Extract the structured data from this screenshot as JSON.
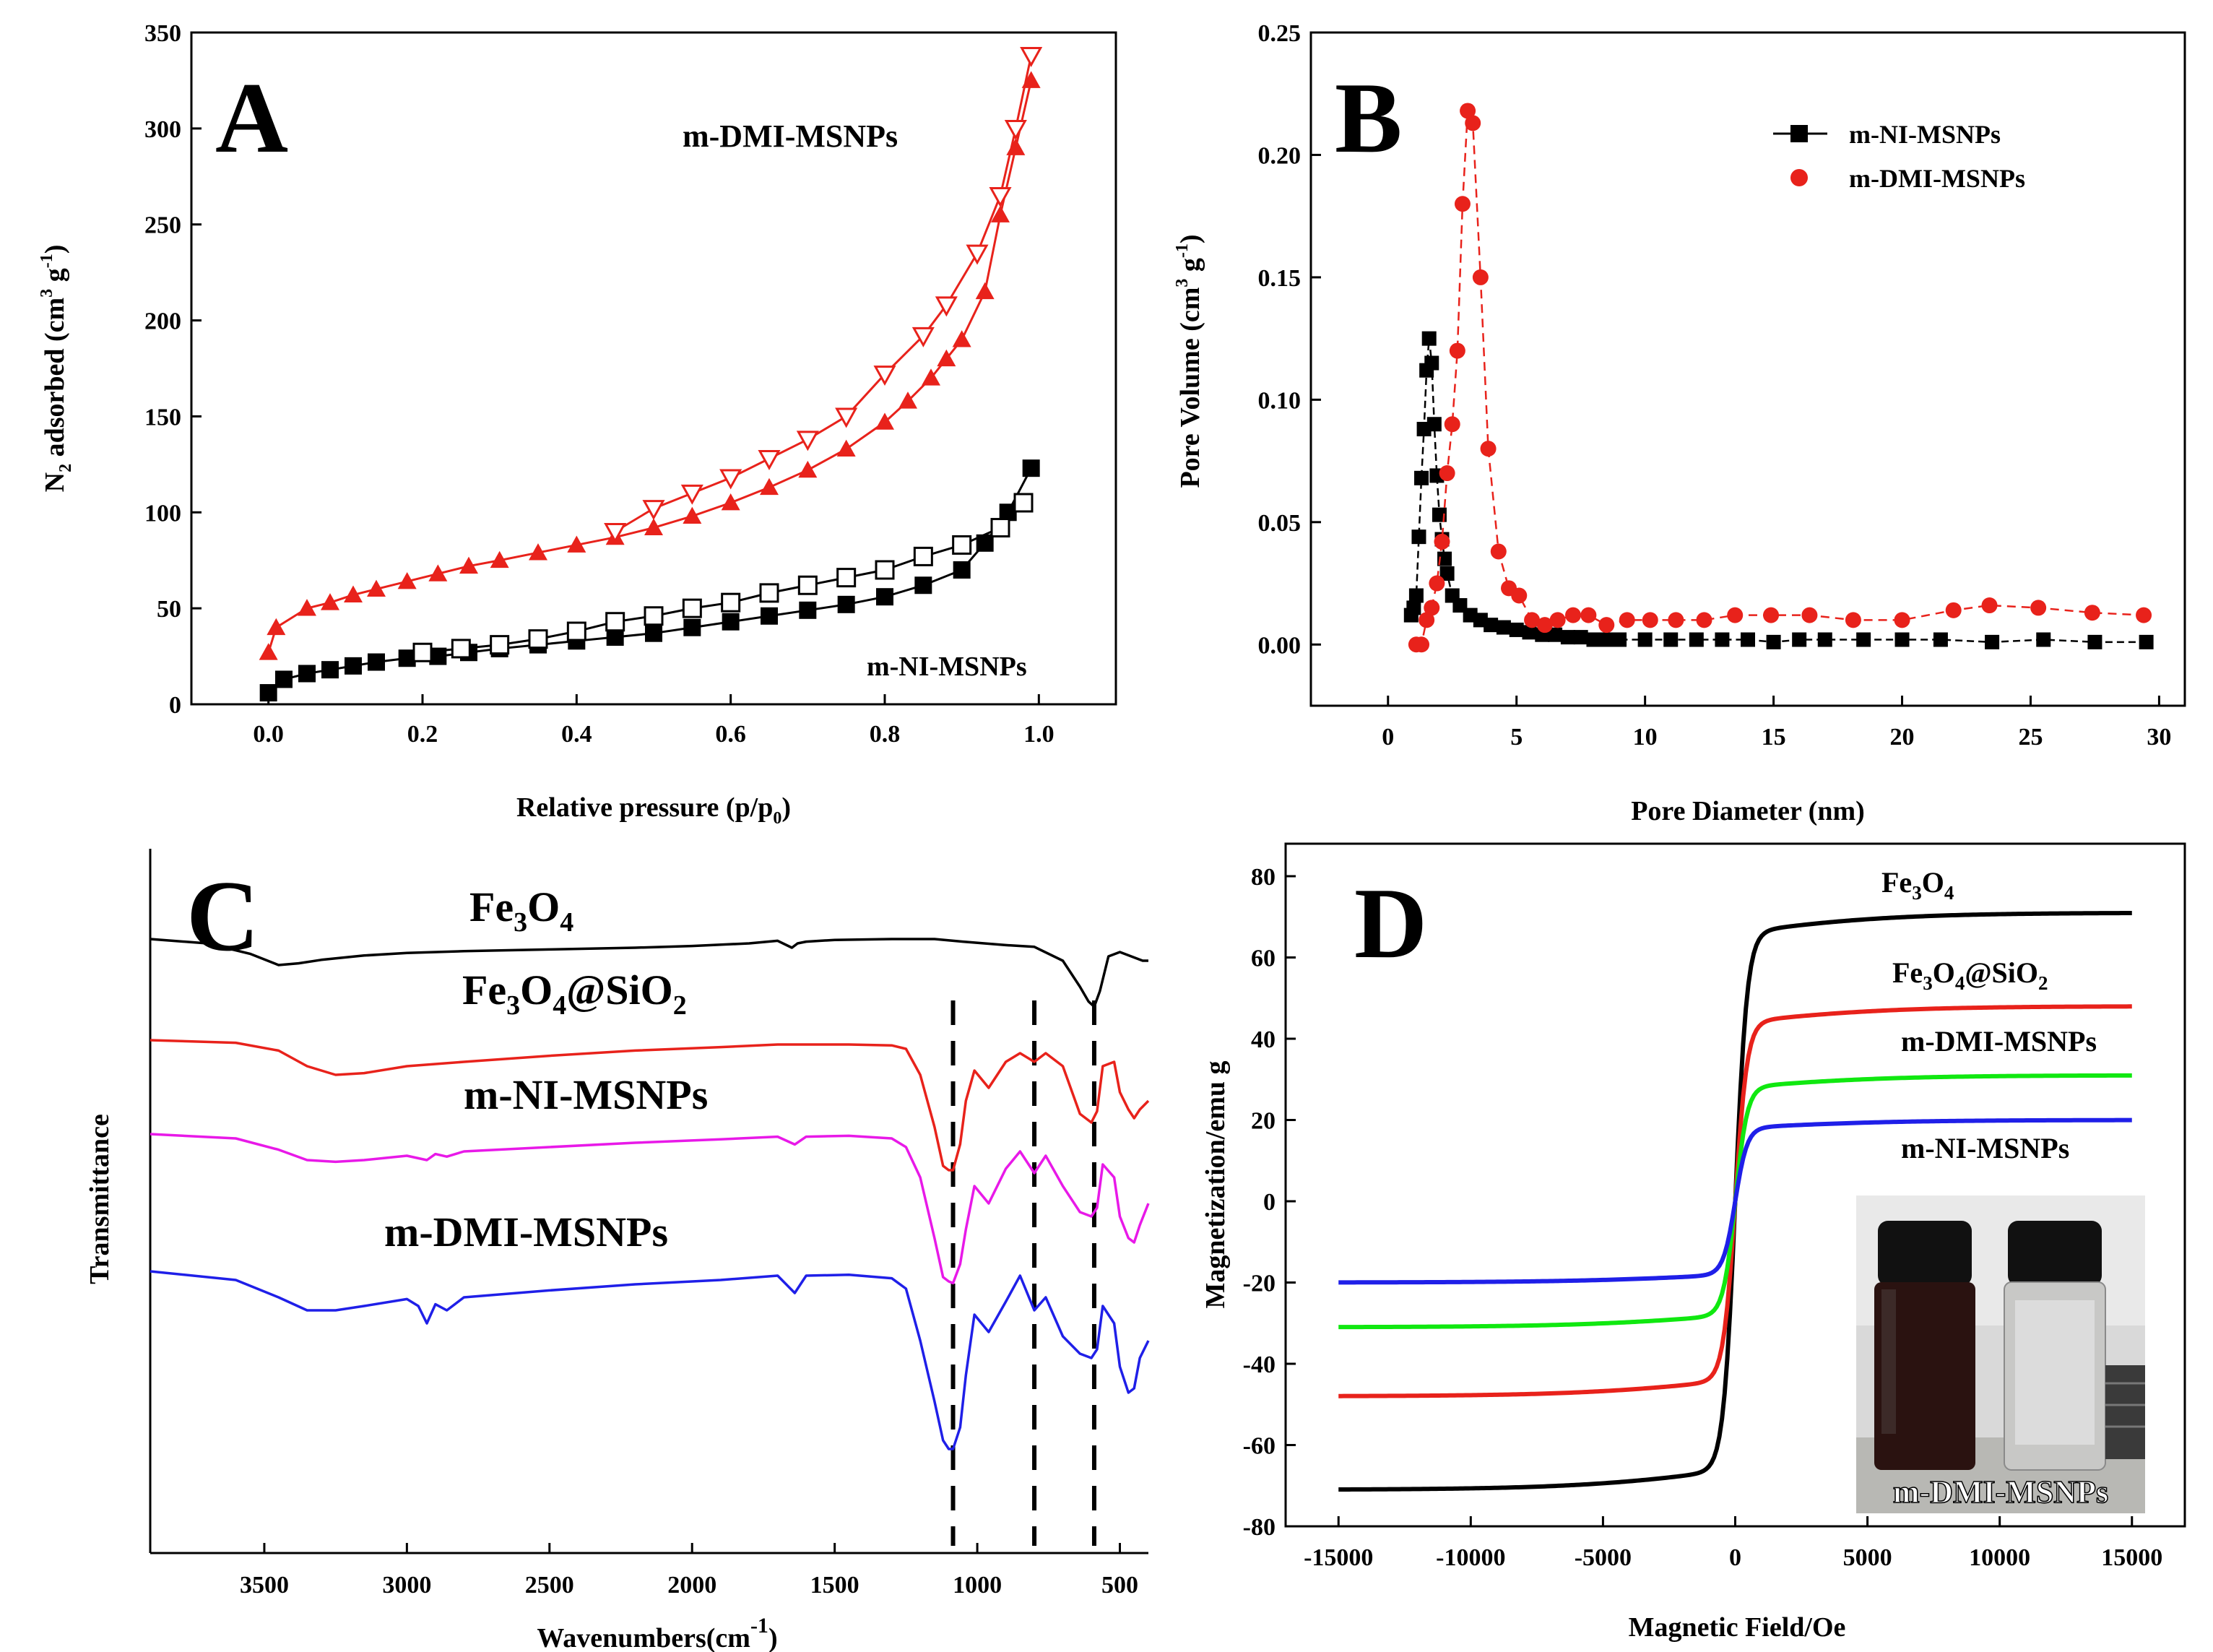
{
  "chart_data": [
    {
      "panel": "A",
      "type": "scatter",
      "xlabel": "Relative pressure (p/p",
      "xlabel_sub": "0",
      "xlabel_close": ")",
      "ylabel_parts": [
        "N",
        "2",
        " adsorbed (cm",
        "3",
        " g",
        "-1",
        ")"
      ],
      "xlim": [
        -0.1,
        1.1
      ],
      "ylim": [
        0,
        350
      ],
      "xticks": [
        0.0,
        0.2,
        0.4,
        0.6,
        0.8,
        1.0
      ],
      "xtick_labels": [
        "0.0",
        "0.2",
        "0.4",
        "0.6",
        "0.8",
        "1.0"
      ],
      "yticks": [
        0,
        50,
        100,
        150,
        200,
        250,
        300,
        350
      ],
      "ytick_labels": [
        "0",
        "50",
        "100",
        "150",
        "200",
        "250",
        "300",
        "350"
      ],
      "annotations": [
        {
          "text": "m-DMI-MSNPs",
          "near": "upper curve"
        },
        {
          "text": "m-NI-MSNPs",
          "near": "lower curve"
        }
      ],
      "series": [
        {
          "name": "m-DMI-MSNPs adsorption",
          "color": "#e8221b",
          "marker": "filled-triangle-up",
          "x": [
            0.0,
            0.01,
            0.05,
            0.08,
            0.11,
            0.14,
            0.18,
            0.22,
            0.26,
            0.3,
            0.35,
            0.4,
            0.45,
            0.5,
            0.55,
            0.6,
            0.65,
            0.7,
            0.75,
            0.8,
            0.83,
            0.86,
            0.88,
            0.9,
            0.93,
            0.95,
            0.97,
            0.99
          ],
          "y": [
            27,
            40,
            50,
            53,
            57,
            60,
            64,
            68,
            72,
            75,
            79,
            83,
            87,
            92,
            98,
            105,
            113,
            122,
            133,
            147,
            158,
            170,
            180,
            190,
            215,
            255,
            290,
            325
          ]
        },
        {
          "name": "m-DMI-MSNPs desorption",
          "color": "#e8221b",
          "marker": "open-triangle-down",
          "x": [
            0.99,
            0.97,
            0.95,
            0.92,
            0.88,
            0.85,
            0.8,
            0.75,
            0.7,
            0.65,
            0.6,
            0.55,
            0.5,
            0.45
          ],
          "y": [
            338,
            300,
            265,
            235,
            208,
            192,
            172,
            150,
            138,
            128,
            118,
            110,
            102,
            90
          ]
        },
        {
          "name": "m-NI-MSNPs adsorption",
          "color": "#000000",
          "marker": "filled-square",
          "x": [
            0.0,
            0.02,
            0.05,
            0.08,
            0.11,
            0.14,
            0.18,
            0.22,
            0.26,
            0.3,
            0.35,
            0.4,
            0.45,
            0.5,
            0.55,
            0.6,
            0.65,
            0.7,
            0.75,
            0.8,
            0.85,
            0.9,
            0.93,
            0.96,
            0.99
          ],
          "y": [
            6,
            13,
            16,
            18,
            20,
            22,
            24,
            25,
            27,
            29,
            31,
            33,
            35,
            37,
            40,
            43,
            46,
            49,
            52,
            56,
            62,
            70,
            84,
            100,
            123
          ]
        },
        {
          "name": "m-NI-MSNPs desorption",
          "color": "#000000",
          "marker": "open-square",
          "x": [
            0.98,
            0.95,
            0.9,
            0.85,
            0.8,
            0.75,
            0.7,
            0.65,
            0.6,
            0.55,
            0.5,
            0.45,
            0.4,
            0.35,
            0.3,
            0.25,
            0.2
          ],
          "y": [
            105,
            92,
            83,
            77,
            70,
            66,
            62,
            58,
            53,
            50,
            46,
            43,
            38,
            34,
            31,
            29,
            27
          ]
        }
      ]
    },
    {
      "panel": "B",
      "type": "scatter",
      "xlabel": "Pore Diameter (nm)",
      "ylabel_parts": [
        "Pore Volume (cm",
        "3",
        " g",
        "-1",
        ")"
      ],
      "xlim": [
        -3,
        31
      ],
      "ylim": [
        -0.025,
        0.25
      ],
      "xticks": [
        0,
        5,
        10,
        15,
        20,
        25,
        30
      ],
      "xtick_labels": [
        "0",
        "5",
        "10",
        "15",
        "20",
        "25",
        "30"
      ],
      "yticks": [
        0.0,
        0.05,
        0.1,
        0.15,
        0.2,
        0.25
      ],
      "ytick_labels": [
        "0.00",
        "0.05",
        "0.10",
        "0.15",
        "0.20",
        "0.25"
      ],
      "legend": "top-right",
      "series": [
        {
          "name": "m-NI-MSNPs",
          "color": "#000000",
          "marker": "filled-square",
          "x": [
            0.9,
            1.0,
            1.1,
            1.2,
            1.3,
            1.4,
            1.5,
            1.6,
            1.7,
            1.8,
            1.9,
            2.0,
            2.1,
            2.2,
            2.3,
            2.5,
            2.8,
            3.2,
            3.6,
            4.0,
            4.5,
            5.0,
            5.5,
            6.0,
            6.5,
            7.0,
            7.5,
            8.0,
            8.5,
            9.0,
            10.0,
            11.0,
            12.0,
            13.0,
            14.0,
            15.0,
            16.0,
            17.0,
            18.5,
            20.0,
            21.5,
            23.5,
            25.5,
            27.5,
            29.5
          ],
          "y": [
            0.012,
            0.015,
            0.02,
            0.044,
            0.068,
            0.088,
            0.112,
            0.125,
            0.115,
            0.09,
            0.069,
            0.053,
            0.043,
            0.035,
            0.029,
            0.02,
            0.016,
            0.012,
            0.01,
            0.008,
            0.007,
            0.006,
            0.005,
            0.004,
            0.004,
            0.003,
            0.003,
            0.002,
            0.002,
            0.002,
            0.002,
            0.002,
            0.002,
            0.002,
            0.002,
            0.001,
            0.002,
            0.002,
            0.002,
            0.002,
            0.002,
            0.001,
            0.002,
            0.001,
            0.001
          ]
        },
        {
          "name": "m-DMI-MSNPs",
          "color": "#e8221b",
          "marker": "filled-circle",
          "x": [
            1.1,
            1.3,
            1.5,
            1.7,
            1.9,
            2.1,
            2.3,
            2.5,
            2.7,
            2.9,
            3.1,
            3.3,
            3.6,
            3.9,
            4.3,
            4.7,
            5.1,
            5.6,
            6.1,
            6.6,
            7.2,
            7.8,
            8.5,
            9.3,
            10.2,
            11.2,
            12.3,
            13.5,
            14.9,
            16.4,
            18.1,
            20.0,
            22.0,
            23.4,
            25.3,
            27.4,
            29.4
          ],
          "y": [
            0.0,
            0.0,
            0.01,
            0.015,
            0.025,
            0.042,
            0.07,
            0.09,
            0.12,
            0.18,
            0.218,
            0.213,
            0.15,
            0.08,
            0.038,
            0.023,
            0.02,
            0.01,
            0.008,
            0.01,
            0.012,
            0.012,
            0.008,
            0.01,
            0.01,
            0.01,
            0.01,
            0.012,
            0.012,
            0.012,
            0.01,
            0.01,
            0.014,
            0.016,
            0.015,
            0.013,
            0.012
          ]
        }
      ]
    },
    {
      "panel": "C",
      "type": "line",
      "xlabel": "Wavenumbers(cm",
      "xlabel_sup": "-1",
      "xlabel_close": ")",
      "ylabel": "Transmittance",
      "xlim": [
        3900,
        400
      ],
      "xticks": [
        3500,
        3000,
        2500,
        2000,
        1500,
        1000,
        500
      ],
      "xtick_labels": [
        "3500",
        "3000",
        "2500",
        "2000",
        "1500",
        "1000",
        "500"
      ],
      "marker_lines_cm-1": [
        1085,
        800,
        590
      ],
      "series": [
        {
          "name": "Fe3O4",
          "label_main": "Fe",
          "label_sub1": "3",
          "label_mid": "O",
          "label_sub2": "4",
          "color": "#000000",
          "offset": 0.0,
          "x": [
            3900,
            3700,
            3550,
            3450,
            3380,
            3300,
            3150,
            3000,
            2800,
            2500,
            2200,
            2000,
            1800,
            1700,
            1650,
            1630,
            1600,
            1500,
            1300,
            1150,
            1050,
            900,
            800,
            700,
            640,
            610,
            590,
            570,
            540,
            500,
            460,
            420,
            400
          ],
          "y": [
            0.0,
            0.05,
            0.17,
            0.3,
            0.28,
            0.24,
            0.19,
            0.16,
            0.14,
            0.12,
            0.1,
            0.08,
            0.05,
            0.02,
            0.1,
            0.05,
            0.03,
            0.01,
            0.0,
            0.0,
            0.03,
            0.07,
            0.09,
            0.25,
            0.55,
            0.72,
            0.78,
            0.6,
            0.2,
            0.15,
            0.2,
            0.25,
            0.25
          ]
        },
        {
          "name": "Fe3O4@SiO2",
          "label_main": "Fe",
          "label_sub1": "3",
          "label_mid": "O",
          "label_sub2": "4",
          "label_tail": "@SiO",
          "label_sub3": "2",
          "color": "#e8221b",
          "offset": 1.0,
          "x": [
            3900,
            3600,
            3450,
            3350,
            3250,
            3150,
            3000,
            2800,
            2500,
            2200,
            1900,
            1700,
            1600,
            1450,
            1300,
            1250,
            1200,
            1150,
            1120,
            1100,
            1085,
            1060,
            1040,
            1010,
            960,
            900,
            850,
            800,
            760,
            700,
            640,
            600,
            580,
            560,
            520,
            500,
            470,
            450,
            430,
            400
          ],
          "y": [
            0.0,
            0.03,
            0.12,
            0.3,
            0.4,
            0.38,
            0.3,
            0.25,
            0.18,
            0.12,
            0.08,
            0.05,
            0.05,
            0.05,
            0.06,
            0.1,
            0.4,
            1.0,
            1.45,
            1.5,
            1.5,
            1.2,
            0.7,
            0.35,
            0.55,
            0.25,
            0.15,
            0.25,
            0.15,
            0.3,
            0.85,
            0.95,
            0.82,
            0.3,
            0.25,
            0.6,
            0.8,
            0.9,
            0.8,
            0.7
          ]
        },
        {
          "name": "m-NI-MSNPs",
          "color": "#e819e8",
          "offset": 2.0,
          "x": [
            3900,
            3600,
            3450,
            3350,
            3250,
            3150,
            3000,
            2930,
            2900,
            2860,
            2800,
            2500,
            2200,
            1900,
            1700,
            1640,
            1600,
            1450,
            1300,
            1250,
            1200,
            1150,
            1120,
            1100,
            1085,
            1060,
            1040,
            1010,
            960,
            900,
            850,
            800,
            760,
            700,
            640,
            600,
            580,
            560,
            520,
            500,
            470,
            450,
            430,
            400
          ],
          "y": [
            0.0,
            0.05,
            0.18,
            0.3,
            0.32,
            0.3,
            0.25,
            0.3,
            0.23,
            0.26,
            0.2,
            0.15,
            0.1,
            0.06,
            0.03,
            0.12,
            0.03,
            0.02,
            0.05,
            0.15,
            0.5,
            1.2,
            1.65,
            1.7,
            1.72,
            1.5,
            1.1,
            0.6,
            0.8,
            0.4,
            0.2,
            0.45,
            0.25,
            0.6,
            0.9,
            0.95,
            0.85,
            0.35,
            0.5,
            0.95,
            1.2,
            1.25,
            1.05,
            0.8
          ]
        },
        {
          "name": "m-DMI-MSNPs",
          "color": "#1f1fe8",
          "offset": 3.0,
          "x": [
            3900,
            3600,
            3450,
            3350,
            3250,
            3150,
            3000,
            2960,
            2930,
            2900,
            2860,
            2800,
            2500,
            2200,
            1900,
            1700,
            1640,
            1600,
            1450,
            1300,
            1250,
            1200,
            1150,
            1120,
            1100,
            1085,
            1060,
            1040,
            1010,
            960,
            900,
            850,
            800,
            760,
            700,
            640,
            600,
            580,
            560,
            520,
            500,
            470,
            450,
            430,
            400
          ],
          "y": [
            0.0,
            0.1,
            0.3,
            0.45,
            0.45,
            0.4,
            0.32,
            0.4,
            0.6,
            0.38,
            0.45,
            0.3,
            0.22,
            0.15,
            0.1,
            0.05,
            0.25,
            0.05,
            0.04,
            0.08,
            0.2,
            0.8,
            1.5,
            1.95,
            2.05,
            2.05,
            1.8,
            1.2,
            0.5,
            0.7,
            0.35,
            0.05,
            0.45,
            0.3,
            0.75,
            0.95,
            1.0,
            0.9,
            0.4,
            0.6,
            1.1,
            1.4,
            1.35,
            1.0,
            0.8
          ]
        }
      ]
    },
    {
      "panel": "D",
      "type": "line",
      "xlabel": "Magnetic Field/Oe",
      "ylabel": "Magnetization/emu g",
      "xlim": [
        -17000,
        17000
      ],
      "ylim": [
        -80,
        88
      ],
      "xticks": [
        -15000,
        -10000,
        -5000,
        0,
        5000,
        10000,
        15000
      ],
      "xtick_labels": [
        "-15000",
        "-10000",
        "-5000",
        "0",
        "5000",
        "10000",
        "15000"
      ],
      "yticks": [
        -80,
        -60,
        -40,
        -20,
        0,
        20,
        40,
        60,
        80
      ],
      "ytick_labels": [
        "-80",
        "-60",
        "-40",
        "-20",
        "0",
        "20",
        "40",
        "60",
        "80"
      ],
      "series": [
        {
          "name": "Fe3O4",
          "color": "#000000",
          "ms": 71,
          "ms_low": 66,
          "label_main": "Fe",
          "label_sub1": "3",
          "label_mid": "O",
          "label_sub2": "4"
        },
        {
          "name": "Fe3O4@SiO2",
          "color": "#e8221b",
          "ms": 48,
          "ms_low": 44,
          "label_main": "Fe",
          "label_sub1": "3",
          "label_mid": "O",
          "label_sub2": "4",
          "label_tail": "@SiO",
          "label_sub3": "2"
        },
        {
          "name": "m-DMI-MSNPs",
          "color": "#10e810",
          "ms": 31,
          "ms_low": 28
        },
        {
          "name": "m-NI-MSNPs",
          "color": "#1f1fe8",
          "ms": 20,
          "ms_low": 18
        }
      ],
      "inset_label": "m-DMI-MSNPs"
    }
  ],
  "panels": {
    "a": "A",
    "b": "B",
    "c": "C",
    "d": "D"
  }
}
